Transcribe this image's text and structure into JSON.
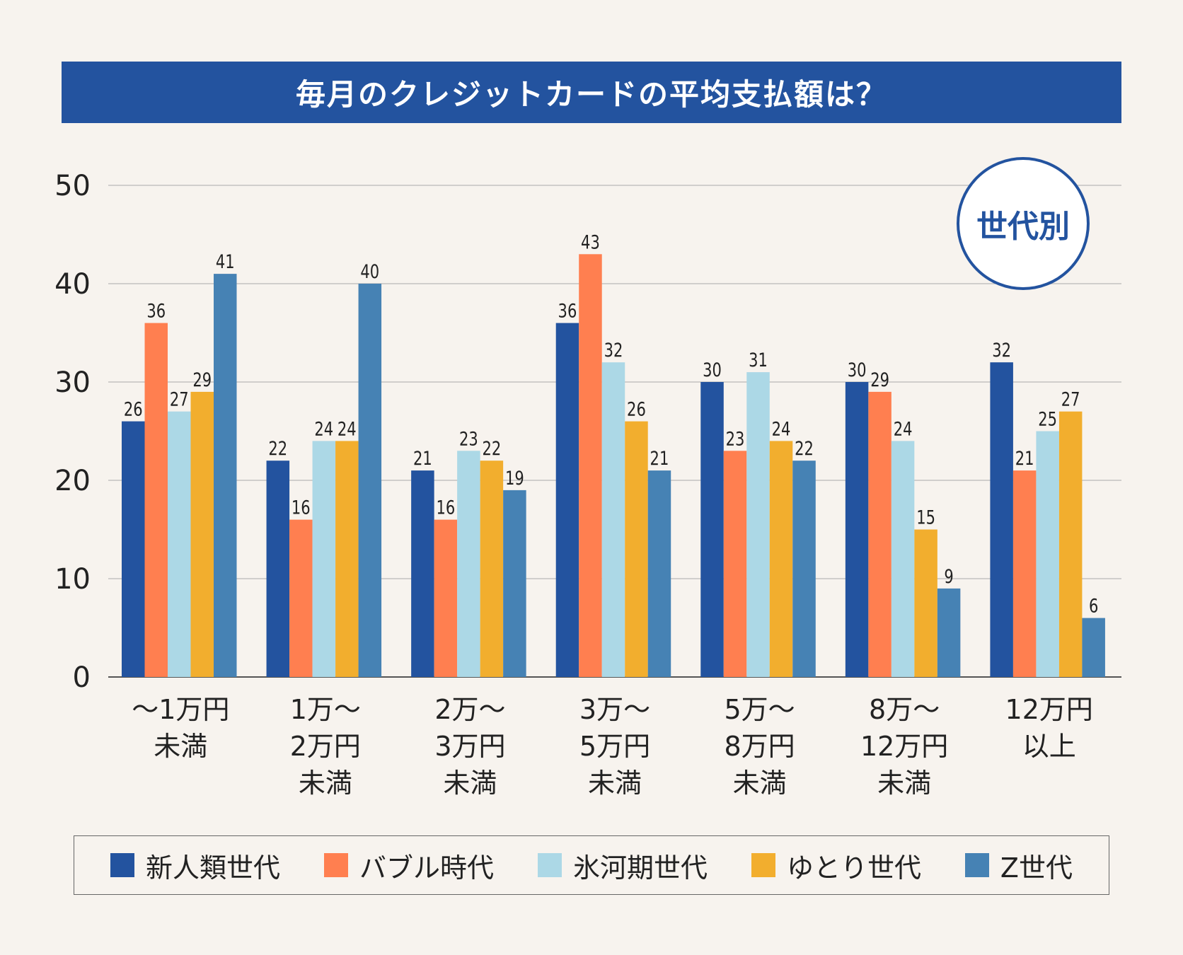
{
  "title": "毎月のクレジットカードの平均支払額は？",
  "badge": "世代別",
  "colors": {
    "background": "#f7f3ee",
    "title_bg": "#23539f",
    "grid": "#b8b8b8",
    "axis": "#555555"
  },
  "chart_data": {
    "type": "bar",
    "title": "毎月のクレジットカードの平均支払額は？",
    "xlabel": "",
    "ylabel": "",
    "ylim": [
      0,
      50
    ],
    "yticks": [
      0,
      10,
      20,
      30,
      40,
      50
    ],
    "grid": true,
    "legend_position": "bottom",
    "categories": [
      [
        "～1万円",
        "未満"
      ],
      [
        "1万～",
        "2万円",
        "未満"
      ],
      [
        "2万～",
        "3万円",
        "未満"
      ],
      [
        "3万～",
        "5万円",
        "未満"
      ],
      [
        "5万～",
        "8万円",
        "未満"
      ],
      [
        "8万～",
        "12万円",
        "未満"
      ],
      [
        "12万円",
        "以上"
      ]
    ],
    "series": [
      {
        "name": "新人類世代",
        "color": "#23539f",
        "values": [
          26,
          22,
          21,
          36,
          30,
          30,
          32
        ]
      },
      {
        "name": "バブル時代",
        "color": "#ff7f50",
        "values": [
          36,
          16,
          16,
          43,
          23,
          29,
          21
        ]
      },
      {
        "name": "氷河期世代",
        "color": "#acd8e6",
        "values": [
          27,
          24,
          23,
          32,
          31,
          24,
          25
        ]
      },
      {
        "name": "ゆとり世代",
        "color": "#f2ae2e",
        "values": [
          29,
          24,
          22,
          26,
          24,
          15,
          27
        ]
      },
      {
        "name": "Z世代",
        "color": "#4682b4",
        "values": [
          41,
          40,
          19,
          21,
          22,
          9,
          6
        ]
      }
    ]
  }
}
